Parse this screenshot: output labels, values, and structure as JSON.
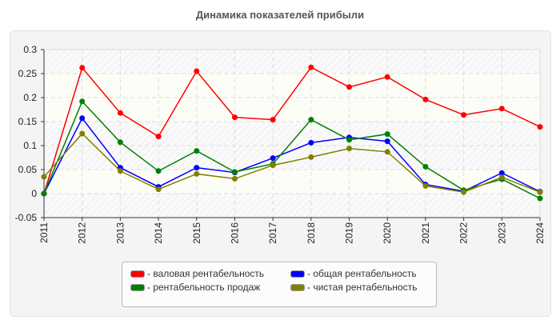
{
  "chart_data": {
    "type": "line",
    "title": "Динамика показателей прибыли",
    "categories": [
      "2011",
      "2012",
      "2013",
      "2014",
      "2015",
      "2016",
      "2017",
      "2018",
      "2019",
      "2020",
      "2021",
      "2022",
      "2023",
      "2024"
    ],
    "ylim": [
      -0.05,
      0.3
    ],
    "yticks": [
      "0.3",
      "0.25",
      "0.2",
      "0.15",
      "0.1",
      "0.05",
      "0",
      "-0.05"
    ],
    "grid": true,
    "legend_position": "bottom",
    "series": [
      {
        "name": "- валовая рентабельность",
        "color": "#ff0000",
        "values": [
          0,
          0.262,
          0.168,
          0.119,
          0.255,
          0.159,
          0.154,
          0.263,
          0.222,
          0.243,
          0.196,
          0.164,
          0.177,
          0.139
        ]
      },
      {
        "name": "- общая рентабельность",
        "color": "#0000ff",
        "values": [
          0,
          0.157,
          0.054,
          0.014,
          0.054,
          0.044,
          0.074,
          0.106,
          0.117,
          0.109,
          0.019,
          0.005,
          0.043,
          0.004
        ]
      },
      {
        "name": "- рентабельность продаж",
        "color": "#008000",
        "values": [
          0,
          0.192,
          0.107,
          0.047,
          0.089,
          0.045,
          0.062,
          0.154,
          0.112,
          0.124,
          0.056,
          0.007,
          0.03,
          -0.01
        ]
      },
      {
        "name": "- чистая рентабельность",
        "color": "#808000",
        "values": [
          0.035,
          0.125,
          0.047,
          0.009,
          0.041,
          0.031,
          0.059,
          0.076,
          0.094,
          0.087,
          0.016,
          0.003,
          0.034,
          0.003
        ]
      }
    ]
  }
}
